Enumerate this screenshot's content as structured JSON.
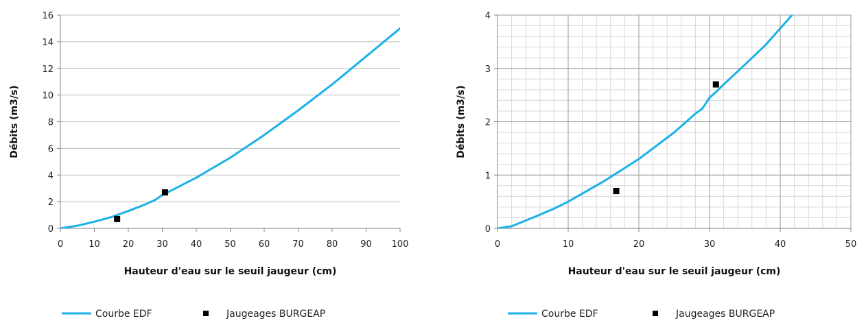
{
  "chart_data": [
    {
      "type": "line",
      "xlabel": "Hauteur d'eau sur le seuil jaugeur (cm)",
      "ylabel": "Débits (m3/s)",
      "xlim": [
        0,
        100
      ],
      "ylim": [
        0,
        16
      ],
      "xticks": [
        0,
        10,
        20,
        30,
        40,
        50,
        60,
        70,
        80,
        90,
        100
      ],
      "yticks": [
        0,
        2,
        4,
        6,
        8,
        10,
        12,
        14,
        16
      ],
      "grid": "horizontal",
      "legend_position": "bottom",
      "series": [
        {
          "name": "Courbe EDF",
          "kind": "line",
          "color": "#1ab1e8",
          "x": [
            0,
            5,
            10,
            15,
            20,
            25,
            28,
            30,
            35,
            40,
            50,
            60,
            70,
            80,
            90,
            100
          ],
          "y": [
            0,
            0.2,
            0.5,
            0.85,
            1.3,
            1.8,
            2.15,
            2.5,
            3.15,
            3.8,
            5.3,
            7.0,
            8.85,
            10.8,
            12.9,
            15.0
          ]
        },
        {
          "name": "Jaugeages BURGEAP",
          "kind": "scatter",
          "color": "#000000",
          "x": [
            16.7,
            30.8
          ],
          "y": [
            0.7,
            2.7
          ]
        }
      ]
    },
    {
      "type": "line",
      "xlabel": "Hauteur d'eau sur le seuil jaugeur (cm)",
      "ylabel": "Débits (m3/s)",
      "xlim": [
        0,
        50
      ],
      "ylim": [
        0,
        4
      ],
      "xticks": [
        0,
        10,
        20,
        30,
        40,
        50
      ],
      "yticks": [
        0,
        1,
        2,
        3,
        4
      ],
      "grid": "major and minor",
      "legend_position": "bottom",
      "series": [
        {
          "name": "Courbe EDF",
          "kind": "line",
          "color": "#1ab1e8",
          "x": [
            0,
            2,
            5,
            8,
            10,
            15,
            20,
            25,
            28,
            29,
            30,
            31,
            32,
            35,
            38,
            40,
            42
          ],
          "y": [
            0,
            0.04,
            0.2,
            0.37,
            0.5,
            0.88,
            1.3,
            1.8,
            2.15,
            2.25,
            2.45,
            2.57,
            2.7,
            3.07,
            3.45,
            3.75,
            4.05
          ]
        },
        {
          "name": "Jaugeages BURGEAP",
          "kind": "scatter",
          "color": "#000000",
          "x": [
            16.8,
            30.9
          ],
          "y": [
            0.7,
            2.7
          ]
        }
      ]
    }
  ]
}
